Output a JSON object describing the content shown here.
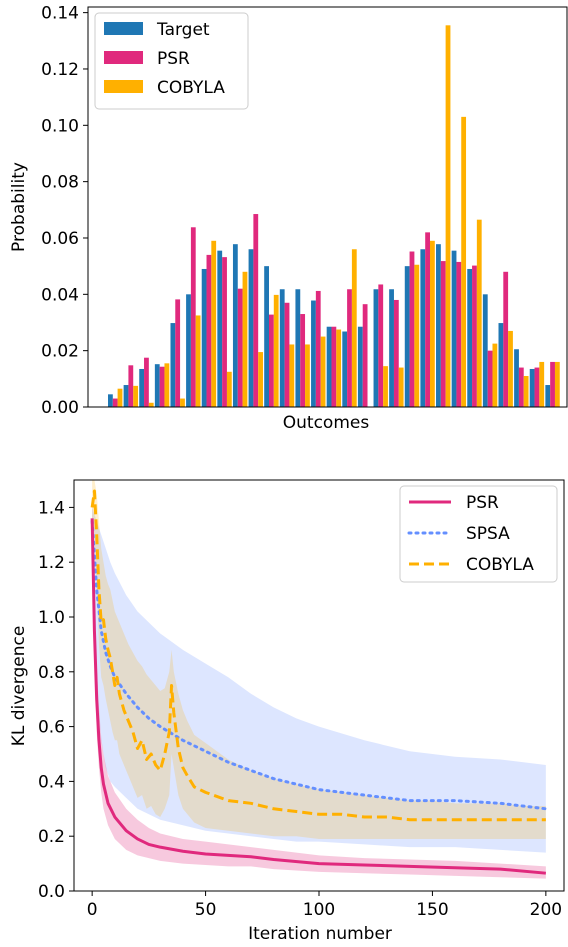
{
  "chart_data": [
    {
      "type": "bar",
      "title": "",
      "xlabel": "Outcomes",
      "ylabel": "Probability",
      "ylim": [
        0,
        0.142
      ],
      "yticks": [
        "0.00",
        "0.02",
        "0.04",
        "0.06",
        "0.08",
        "0.10",
        "0.12",
        "0.14"
      ],
      "legend_position": "top-left",
      "grid": false,
      "series": [
        {
          "name": "Target",
          "color": "#1f77b4",
          "values": [
            0.0045,
            0.0078,
            0.0135,
            0.0152,
            0.0298,
            0.04,
            0.049,
            0.0555,
            0.0578,
            0.056,
            0.05,
            0.0418,
            0.0418,
            0.0378,
            0.0285,
            0.0268,
            0.0285,
            0.0418,
            0.0418,
            0.05,
            0.056,
            0.0578,
            0.0555,
            0.049,
            0.04,
            0.0298,
            0.0205,
            0.0135,
            0.0078
          ]
        },
        {
          "name": "PSR",
          "color": "#e0297d",
          "values": [
            0.003,
            0.0148,
            0.0175,
            0.0143,
            0.0382,
            0.0638,
            0.054,
            0.0532,
            0.042,
            0.0685,
            0.0328,
            0.037,
            0.033,
            0.0412,
            0.0285,
            0.0418,
            0.0365,
            0.0435,
            0.038,
            0.0552,
            0.062,
            0.0518,
            0.0515,
            0.0502,
            0.02,
            0.048,
            0.014,
            0.014,
            0.016
          ]
        },
        {
          "name": "COBYLA",
          "color": "#ffb000",
          "values": [
            0.0065,
            0.0075,
            0.0015,
            0.0155,
            0.003,
            0.0325,
            0.059,
            0.0125,
            0.048,
            0.0195,
            0.0398,
            0.0222,
            0.0222,
            0.025,
            0.0275,
            0.056,
            0.0,
            0.0145,
            0.014,
            0.0505,
            0.059,
            0.1355,
            0.103,
            0.0665,
            0.0225,
            0.027,
            0.011,
            0.016,
            0.016
          ]
        }
      ]
    },
    {
      "type": "line",
      "title": "",
      "xlabel": "Iteration number",
      "ylabel": "KL divergence",
      "xlim": [
        -8,
        208
      ],
      "ylim": [
        0,
        1.5
      ],
      "xticks": [
        "0",
        "50",
        "100",
        "150",
        "200"
      ],
      "yticks": [
        "0.0",
        "0.2",
        "0.4",
        "0.6",
        "0.8",
        "1.0",
        "1.2",
        "1.4"
      ],
      "legend_position": "top-right",
      "grid": false,
      "series": [
        {
          "name": "PSR",
          "color": "#e0297d",
          "style": "solid",
          "x": [
            0,
            1,
            2,
            3,
            4,
            5,
            7,
            10,
            15,
            20,
            25,
            30,
            40,
            50,
            60,
            70,
            80,
            100,
            120,
            140,
            160,
            180,
            200
          ],
          "values": [
            1.36,
            0.95,
            0.7,
            0.55,
            0.45,
            0.39,
            0.32,
            0.27,
            0.22,
            0.19,
            0.17,
            0.16,
            0.145,
            0.135,
            0.13,
            0.125,
            0.115,
            0.1,
            0.095,
            0.09,
            0.085,
            0.08,
            0.065
          ],
          "band_upper": [
            1.4,
            1.05,
            0.82,
            0.67,
            0.56,
            0.5,
            0.42,
            0.36,
            0.3,
            0.26,
            0.23,
            0.21,
            0.19,
            0.18,
            0.17,
            0.16,
            0.15,
            0.13,
            0.12,
            0.115,
            0.11,
            0.1,
            0.09
          ],
          "band_lower": [
            1.3,
            0.85,
            0.58,
            0.45,
            0.36,
            0.3,
            0.24,
            0.19,
            0.15,
            0.13,
            0.12,
            0.11,
            0.1,
            0.095,
            0.09,
            0.09,
            0.08,
            0.07,
            0.065,
            0.06,
            0.055,
            0.05,
            0.045
          ]
        },
        {
          "name": "SPSA",
          "color": "#648fff",
          "style": "dotted",
          "x": [
            0,
            2,
            4,
            6,
            8,
            10,
            15,
            20,
            25,
            30,
            40,
            50,
            60,
            70,
            80,
            90,
            100,
            120,
            140,
            160,
            180,
            200
          ],
          "values": [
            1.35,
            1.1,
            0.95,
            0.87,
            0.82,
            0.78,
            0.72,
            0.67,
            0.63,
            0.6,
            0.55,
            0.51,
            0.47,
            0.44,
            0.41,
            0.39,
            0.37,
            0.35,
            0.33,
            0.33,
            0.32,
            0.3
          ],
          "band_upper": [
            1.4,
            1.35,
            1.3,
            1.25,
            1.2,
            1.16,
            1.08,
            1.02,
            0.98,
            0.94,
            0.88,
            0.83,
            0.78,
            0.72,
            0.67,
            0.63,
            0.6,
            0.55,
            0.51,
            0.49,
            0.48,
            0.46
          ],
          "band_lower": [
            1.2,
            0.75,
            0.55,
            0.45,
            0.4,
            0.38,
            0.34,
            0.3,
            0.28,
            0.26,
            0.24,
            0.22,
            0.21,
            0.2,
            0.19,
            0.18,
            0.18,
            0.17,
            0.16,
            0.16,
            0.15,
            0.14
          ]
        },
        {
          "name": "COBYLA",
          "color": "#ffb000",
          "style": "dashed",
          "x": [
            0,
            1,
            2,
            3,
            4,
            5,
            6,
            7,
            8,
            9,
            10,
            11,
            12,
            14,
            16,
            18,
            20,
            22,
            24,
            26,
            28,
            30,
            32,
            34,
            35,
            36,
            38,
            40,
            42,
            45,
            50,
            60,
            70,
            80,
            90,
            100,
            110,
            120,
            130,
            140,
            150,
            160,
            170,
            180,
            190,
            200
          ],
          "values": [
            1.4,
            1.46,
            1.3,
            1.1,
            0.98,
            0.99,
            0.92,
            0.88,
            0.85,
            0.8,
            0.75,
            0.78,
            0.72,
            0.66,
            0.62,
            0.58,
            0.52,
            0.55,
            0.48,
            0.5,
            0.46,
            0.44,
            0.5,
            0.58,
            0.75,
            0.65,
            0.52,
            0.45,
            0.42,
            0.38,
            0.36,
            0.33,
            0.32,
            0.3,
            0.29,
            0.28,
            0.28,
            0.27,
            0.27,
            0.26,
            0.26,
            0.26,
            0.26,
            0.26,
            0.26,
            0.26
          ],
          "band_upper": [
            1.5,
            1.5,
            1.45,
            1.35,
            1.25,
            1.2,
            1.15,
            1.12,
            1.1,
            1.06,
            1.02,
            1.0,
            0.98,
            0.94,
            0.9,
            0.87,
            0.84,
            0.82,
            0.79,
            0.77,
            0.75,
            0.73,
            0.74,
            0.8,
            0.88,
            0.8,
            0.72,
            0.66,
            0.62,
            0.57,
            0.54,
            0.48,
            0.44,
            0.41,
            0.39,
            0.37,
            0.36,
            0.35,
            0.34,
            0.33,
            0.33,
            0.32,
            0.32,
            0.32,
            0.31,
            0.31
          ],
          "band_lower": [
            1.25,
            1.3,
            1.1,
            0.9,
            0.78,
            0.75,
            0.7,
            0.66,
            0.62,
            0.58,
            0.55,
            0.55,
            0.5,
            0.46,
            0.42,
            0.38,
            0.34,
            0.35,
            0.3,
            0.31,
            0.28,
            0.27,
            0.3,
            0.35,
            0.5,
            0.45,
            0.35,
            0.3,
            0.28,
            0.25,
            0.23,
            0.22,
            0.21,
            0.2,
            0.2,
            0.19,
            0.19,
            0.19,
            0.19,
            0.19,
            0.19,
            0.19,
            0.19,
            0.19,
            0.19,
            0.19
          ]
        }
      ]
    }
  ]
}
